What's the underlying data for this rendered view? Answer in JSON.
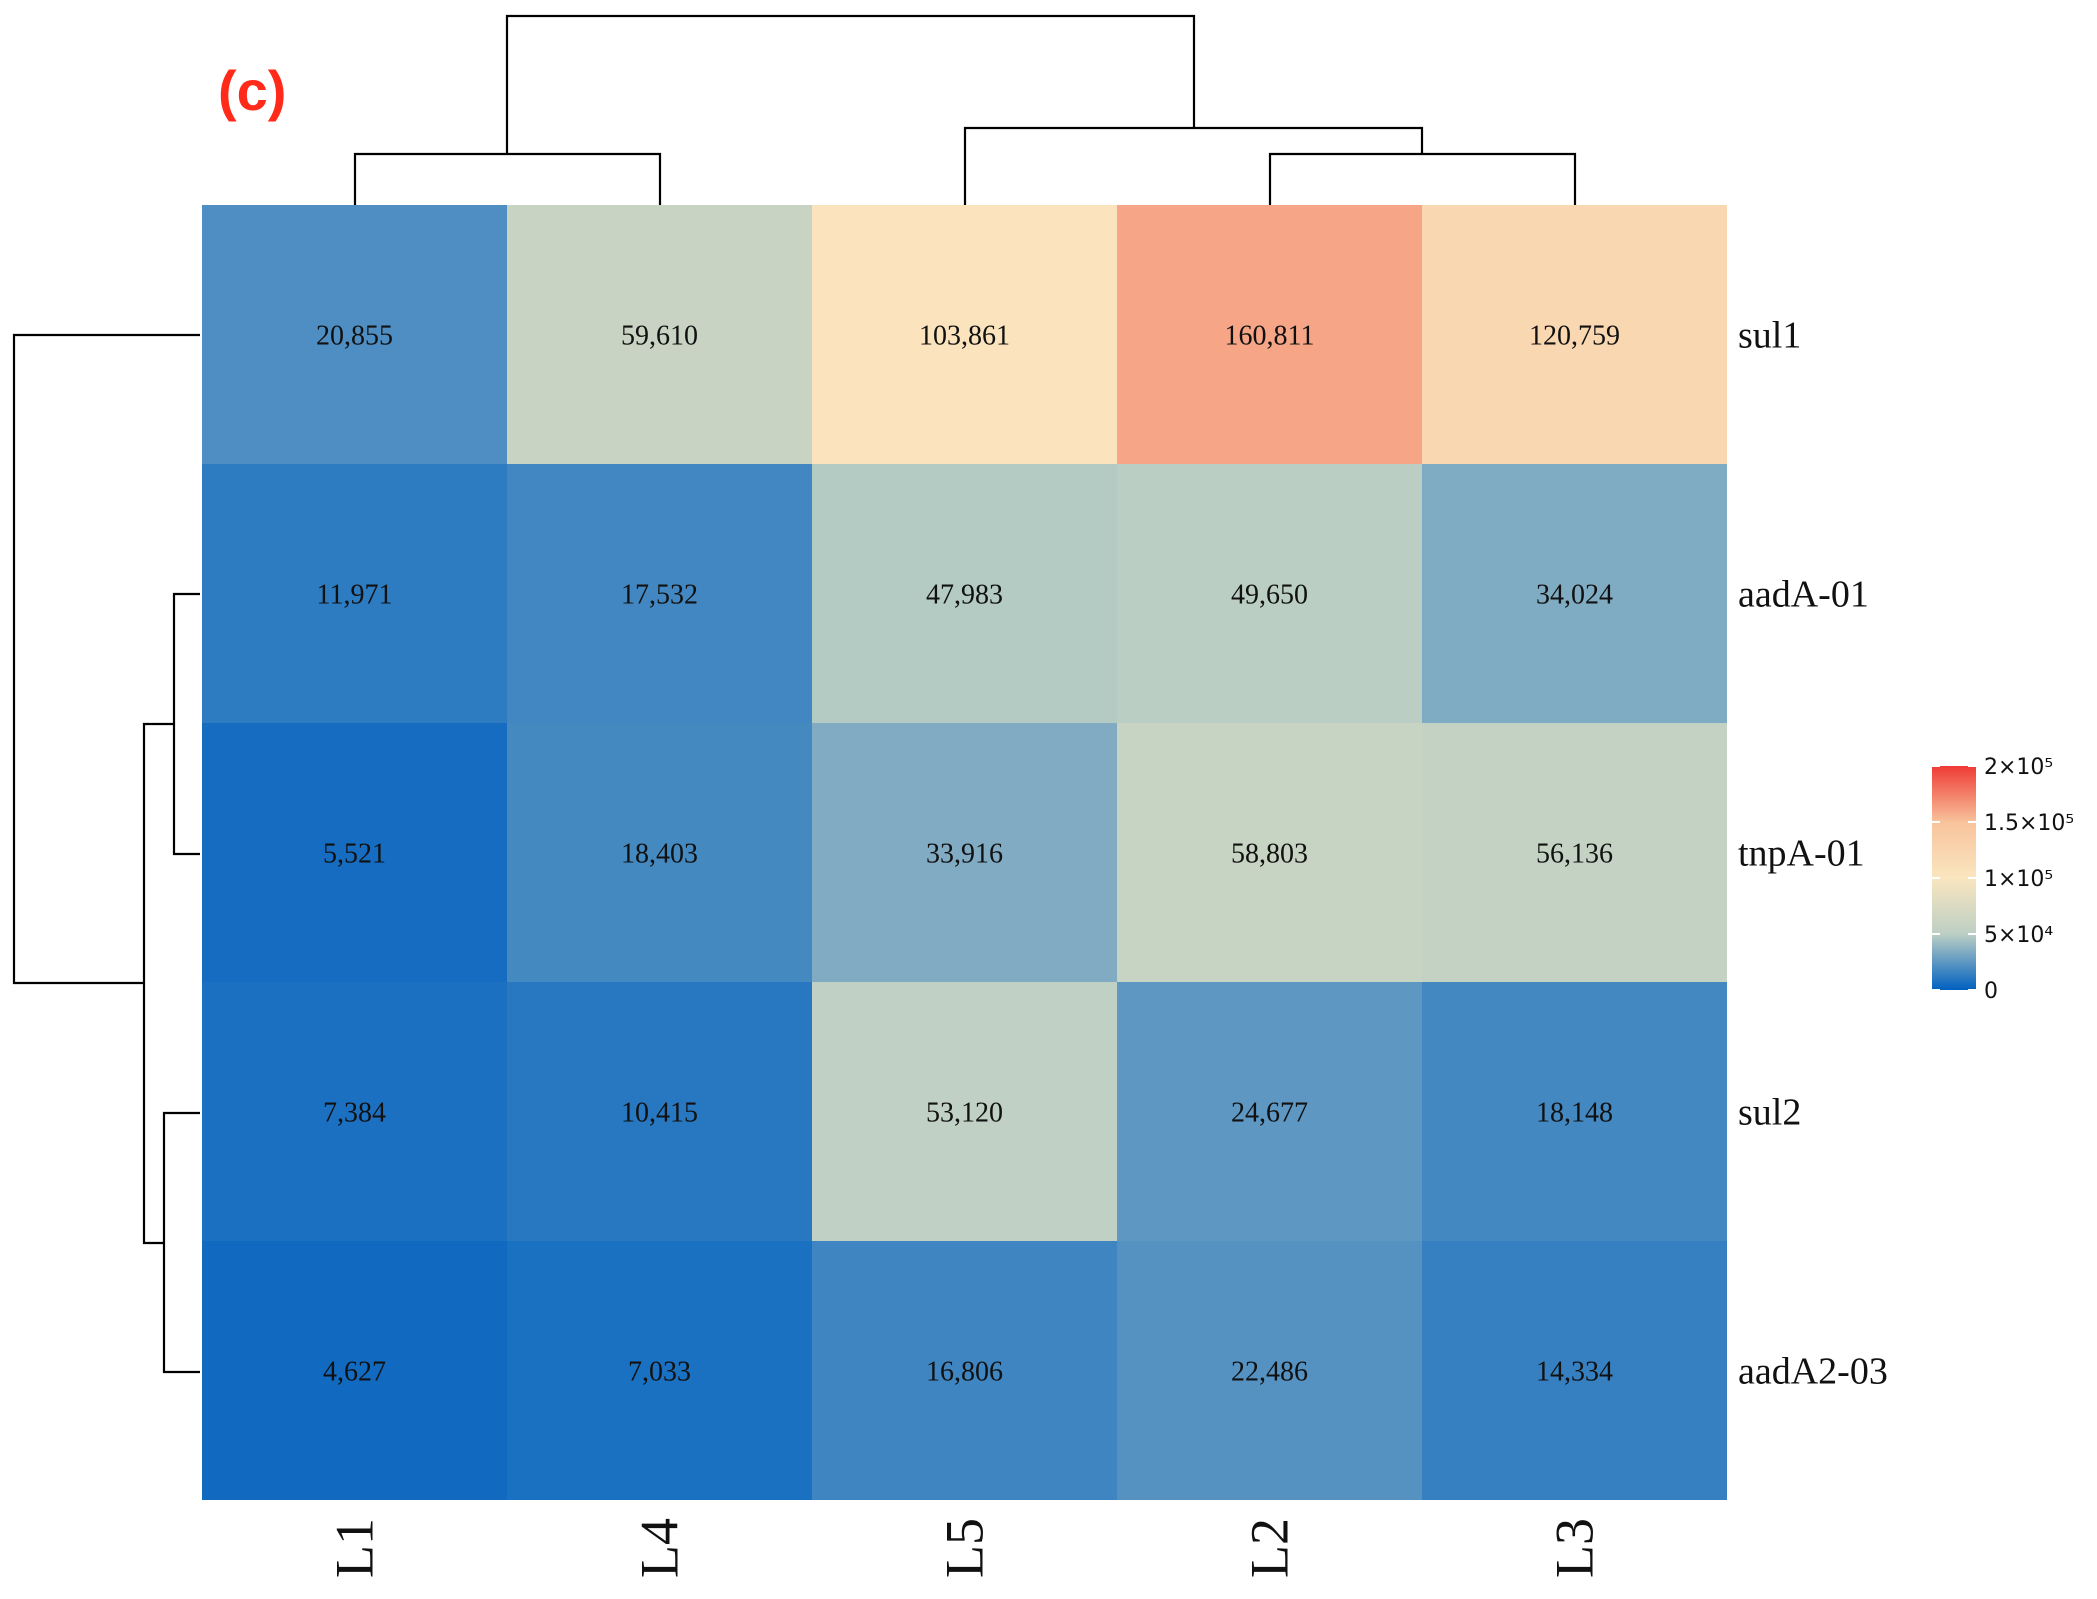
{
  "panel_label": "(c)",
  "chart_data": {
    "type": "heatmap",
    "title": "",
    "columns": [
      "L1",
      "L4",
      "L5",
      "L2",
      "L3"
    ],
    "rows": [
      "sul1",
      "aadA-01",
      "tnpA-01",
      "sul2",
      "aadA2-03"
    ],
    "values": [
      [
        20855,
        59610,
        103861,
        160811,
        120759
      ],
      [
        11971,
        17532,
        47983,
        49650,
        34024
      ],
      [
        5521,
        18403,
        33916,
        58803,
        56136
      ],
      [
        7384,
        10415,
        53120,
        24677,
        18148
      ],
      [
        4627,
        7033,
        16806,
        22486,
        14334
      ]
    ],
    "value_labels": [
      [
        "20,855",
        "59,610",
        "103,861",
        "160,811",
        "120,759"
      ],
      [
        "11,971",
        "17,532",
        "47,983",
        "49,650",
        "34,024"
      ],
      [
        "5,521",
        "18,403",
        "33,916",
        "58,803",
        "56,136"
      ],
      [
        "7,384",
        "10,415",
        "53,120",
        "24,677",
        "18,148"
      ],
      [
        "4,627",
        "7,033",
        "16,806",
        "22,486",
        "14,334"
      ]
    ],
    "color_scale": {
      "min": 0,
      "max": 200000,
      "stops": [
        "#0060c0",
        "#bccfc4",
        "#fae6c0",
        "#f8c39c",
        "#ef3b35"
      ],
      "ticks": [
        {
          "value": 200000,
          "label": "2×10⁵"
        },
        {
          "value": 150000,
          "label": "1.5×10⁵"
        },
        {
          "value": 100000,
          "label": "1×10⁵"
        },
        {
          "value": 50000,
          "label": "5×10⁴"
        },
        {
          "value": 0,
          "label": "0"
        }
      ]
    },
    "column_dendrogram": "((L1,L4),(L5,(L2,L3)))",
    "row_dendrogram": "(sul1,((aadA-01,tnpA-01),(sul2,aadA2-03)))",
    "legend_position": "right"
  }
}
